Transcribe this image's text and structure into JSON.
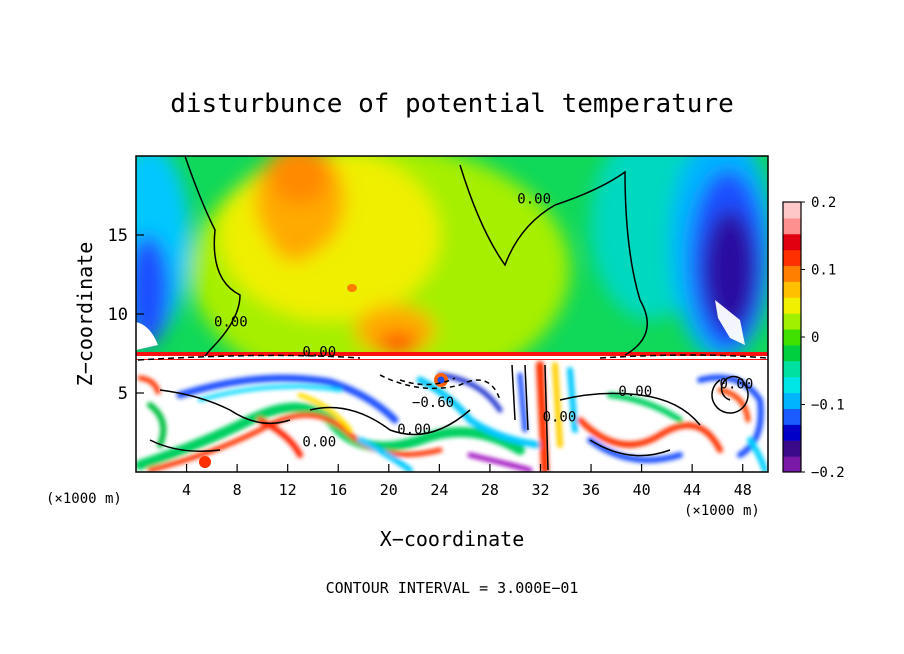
{
  "chart_data": {
    "type": "heatmap",
    "title": "disturbunce of potential temperature",
    "xlabel": "X−coordinate",
    "ylabel": "Z−coordinate",
    "x_unit": "(×1000 m)",
    "x_unit_right": "(×1000 m)",
    "xlim": [
      0,
      50
    ],
    "ylim": [
      0,
      20
    ],
    "x_ticks": [
      4,
      8,
      12,
      16,
      20,
      24,
      28,
      32,
      36,
      40,
      44,
      48
    ],
    "y_ticks": [
      5,
      10,
      15
    ],
    "colorbar": {
      "range": [
        -0.2,
        0.2
      ],
      "tick_values": [
        0.2,
        0.1,
        0,
        -0.1,
        -0.2
      ],
      "tick_labels": [
        "0.2",
        "0.1",
        "0",
        "−0.1",
        "−0.2"
      ],
      "colors": [
        "#7a18a8",
        "#3a0a8a",
        "#0000c8",
        "#1a5cff",
        "#00b4ff",
        "#00e6e6",
        "#00e0a0",
        "#00d040",
        "#40e000",
        "#a0f000",
        "#f0f000",
        "#ffc000",
        "#ff8000",
        "#ff3000",
        "#e00010",
        "#ff9090",
        "#ffc8c8"
      ]
    },
    "contour_labels": [
      {
        "text": "0.00",
        "x": 31.5,
        "y": 17.0
      },
      {
        "text": "0.00",
        "x": 7.5,
        "y": 9.2
      },
      {
        "text": "0.00",
        "x": 14.5,
        "y": 7.3
      },
      {
        "text": "0.00",
        "x": 39.5,
        "y": 4.8
      },
      {
        "text": "0.00",
        "x": 22.0,
        "y": 2.4
      },
      {
        "text": "0.00",
        "x": 14.5,
        "y": 1.6
      },
      {
        "text": "0.00",
        "x": 33.5,
        "y": 3.2
      },
      {
        "text": "−0.60",
        "x": 23.5,
        "y": 4.1
      },
      {
        "text": "0.00",
        "x": 47.5,
        "y": 5.3
      }
    ],
    "footer": "CONTOUR INTERVAL = 3.000E−01"
  }
}
